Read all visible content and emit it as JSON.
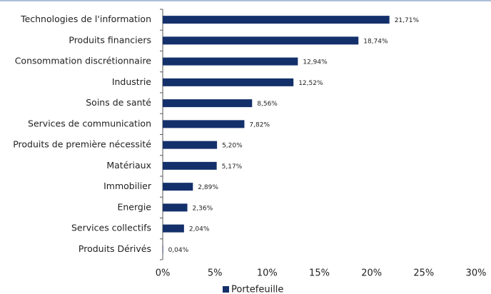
{
  "chart_data": {
    "type": "barh",
    "categories": [
      "Technologies de l'information",
      "Produits financiers",
      "Consommation discrétionnaire",
      "Industrie",
      "Soins de santé",
      "Services de communication",
      "Produits de première nécessité",
      "Matériaux",
      "Immobilier",
      "Energie",
      "Services collectifs",
      "Produits Dérivés"
    ],
    "series": [
      {
        "name": "Portefeuille",
        "color": "#14306b",
        "values": [
          21.71,
          18.74,
          12.94,
          12.52,
          8.56,
          7.82,
          5.2,
          5.17,
          2.89,
          2.36,
          2.04,
          0.04
        ],
        "value_labels": [
          "21,71%",
          "18,74%",
          "12,94%",
          "12,52%",
          "8,56%",
          "7,82%",
          "5,20%",
          "5,17%",
          "2,89%",
          "2,36%",
          "2,04%",
          "0,04%"
        ]
      }
    ],
    "xlim": [
      0,
      30
    ],
    "xticks": [
      {
        "value": 0,
        "label": "0%"
      },
      {
        "value": 5,
        "label": "5%"
      },
      {
        "value": 10,
        "label": "10%"
      },
      {
        "value": 15,
        "label": "15%"
      },
      {
        "value": 20,
        "label": "20%"
      },
      {
        "value": 25,
        "label": "25%"
      },
      {
        "value": 30,
        "label": "30%"
      }
    ],
    "legend": "bottom"
  }
}
